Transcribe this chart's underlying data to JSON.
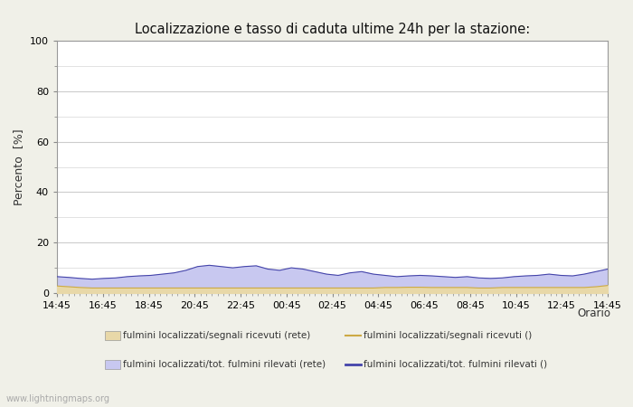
{
  "title": "Localizzazione e tasso di caduta ultime 24h per la stazione:",
  "ylabel": "Percento  [%]",
  "ylim": [
    0,
    100
  ],
  "yticks": [
    0,
    20,
    40,
    60,
    80,
    100
  ],
  "yticks_minor": [
    10,
    30,
    50,
    70,
    90
  ],
  "x_labels": [
    "14:45",
    "16:45",
    "18:45",
    "20:45",
    "22:45",
    "00:45",
    "02:45",
    "04:45",
    "06:45",
    "08:45",
    "10:45",
    "12:45",
    "14:45"
  ],
  "background_color": "#f0f0e8",
  "plot_bg_color": "#ffffff",
  "grid_color": "#cccccc",
  "fill_blue_color": "#c8c8f0",
  "fill_yellow_color": "#e8d8a8",
  "line_blue_color": "#4444aa",
  "line_yellow_color": "#ccaa44",
  "watermark": "www.lightningmaps.org",
  "legend_items": [
    {
      "label": "fulmini localizzati/segnali ricevuti (rete)",
      "type": "fill",
      "color": "#e8d8a8"
    },
    {
      "label": "fulmini localizzati/segnali ricevuti ()",
      "type": "line",
      "color": "#ccaa44"
    },
    {
      "label": "fulmini localizzati/tot. fulmini rilevati (rete)",
      "type": "fill",
      "color": "#c8c8f0"
    },
    {
      "label": "fulmini localizzati/tot. fulmini rilevati ()",
      "type": "line",
      "color": "#4444aa"
    }
  ],
  "blue_data": [
    6.5,
    6.2,
    5.8,
    5.5,
    5.8,
    6.0,
    6.5,
    6.8,
    7.0,
    7.5,
    8.0,
    9.0,
    10.5,
    11.0,
    10.5,
    10.0,
    10.5,
    10.8,
    9.5,
    9.0,
    10.0,
    9.5,
    8.5,
    7.5,
    7.0,
    8.0,
    8.5,
    7.5,
    7.0,
    6.5,
    6.8,
    7.0,
    6.8,
    6.5,
    6.2,
    6.5,
    6.0,
    5.8,
    6.0,
    6.5,
    6.8,
    7.0,
    7.5,
    7.0,
    6.8,
    7.5,
    8.5,
    9.5
  ],
  "yellow_data": [
    2.8,
    2.5,
    2.2,
    2.0,
    2.0,
    2.0,
    2.0,
    2.0,
    2.0,
    2.0,
    2.0,
    2.0,
    2.0,
    2.0,
    2.0,
    2.0,
    2.0,
    2.0,
    2.0,
    2.0,
    2.0,
    2.0,
    2.0,
    2.0,
    2.0,
    2.0,
    2.0,
    2.0,
    2.2,
    2.2,
    2.3,
    2.3,
    2.2,
    2.2,
    2.2,
    2.2,
    2.0,
    2.0,
    2.2,
    2.2,
    2.2,
    2.2,
    2.2,
    2.2,
    2.2,
    2.2,
    2.5,
    3.0
  ]
}
